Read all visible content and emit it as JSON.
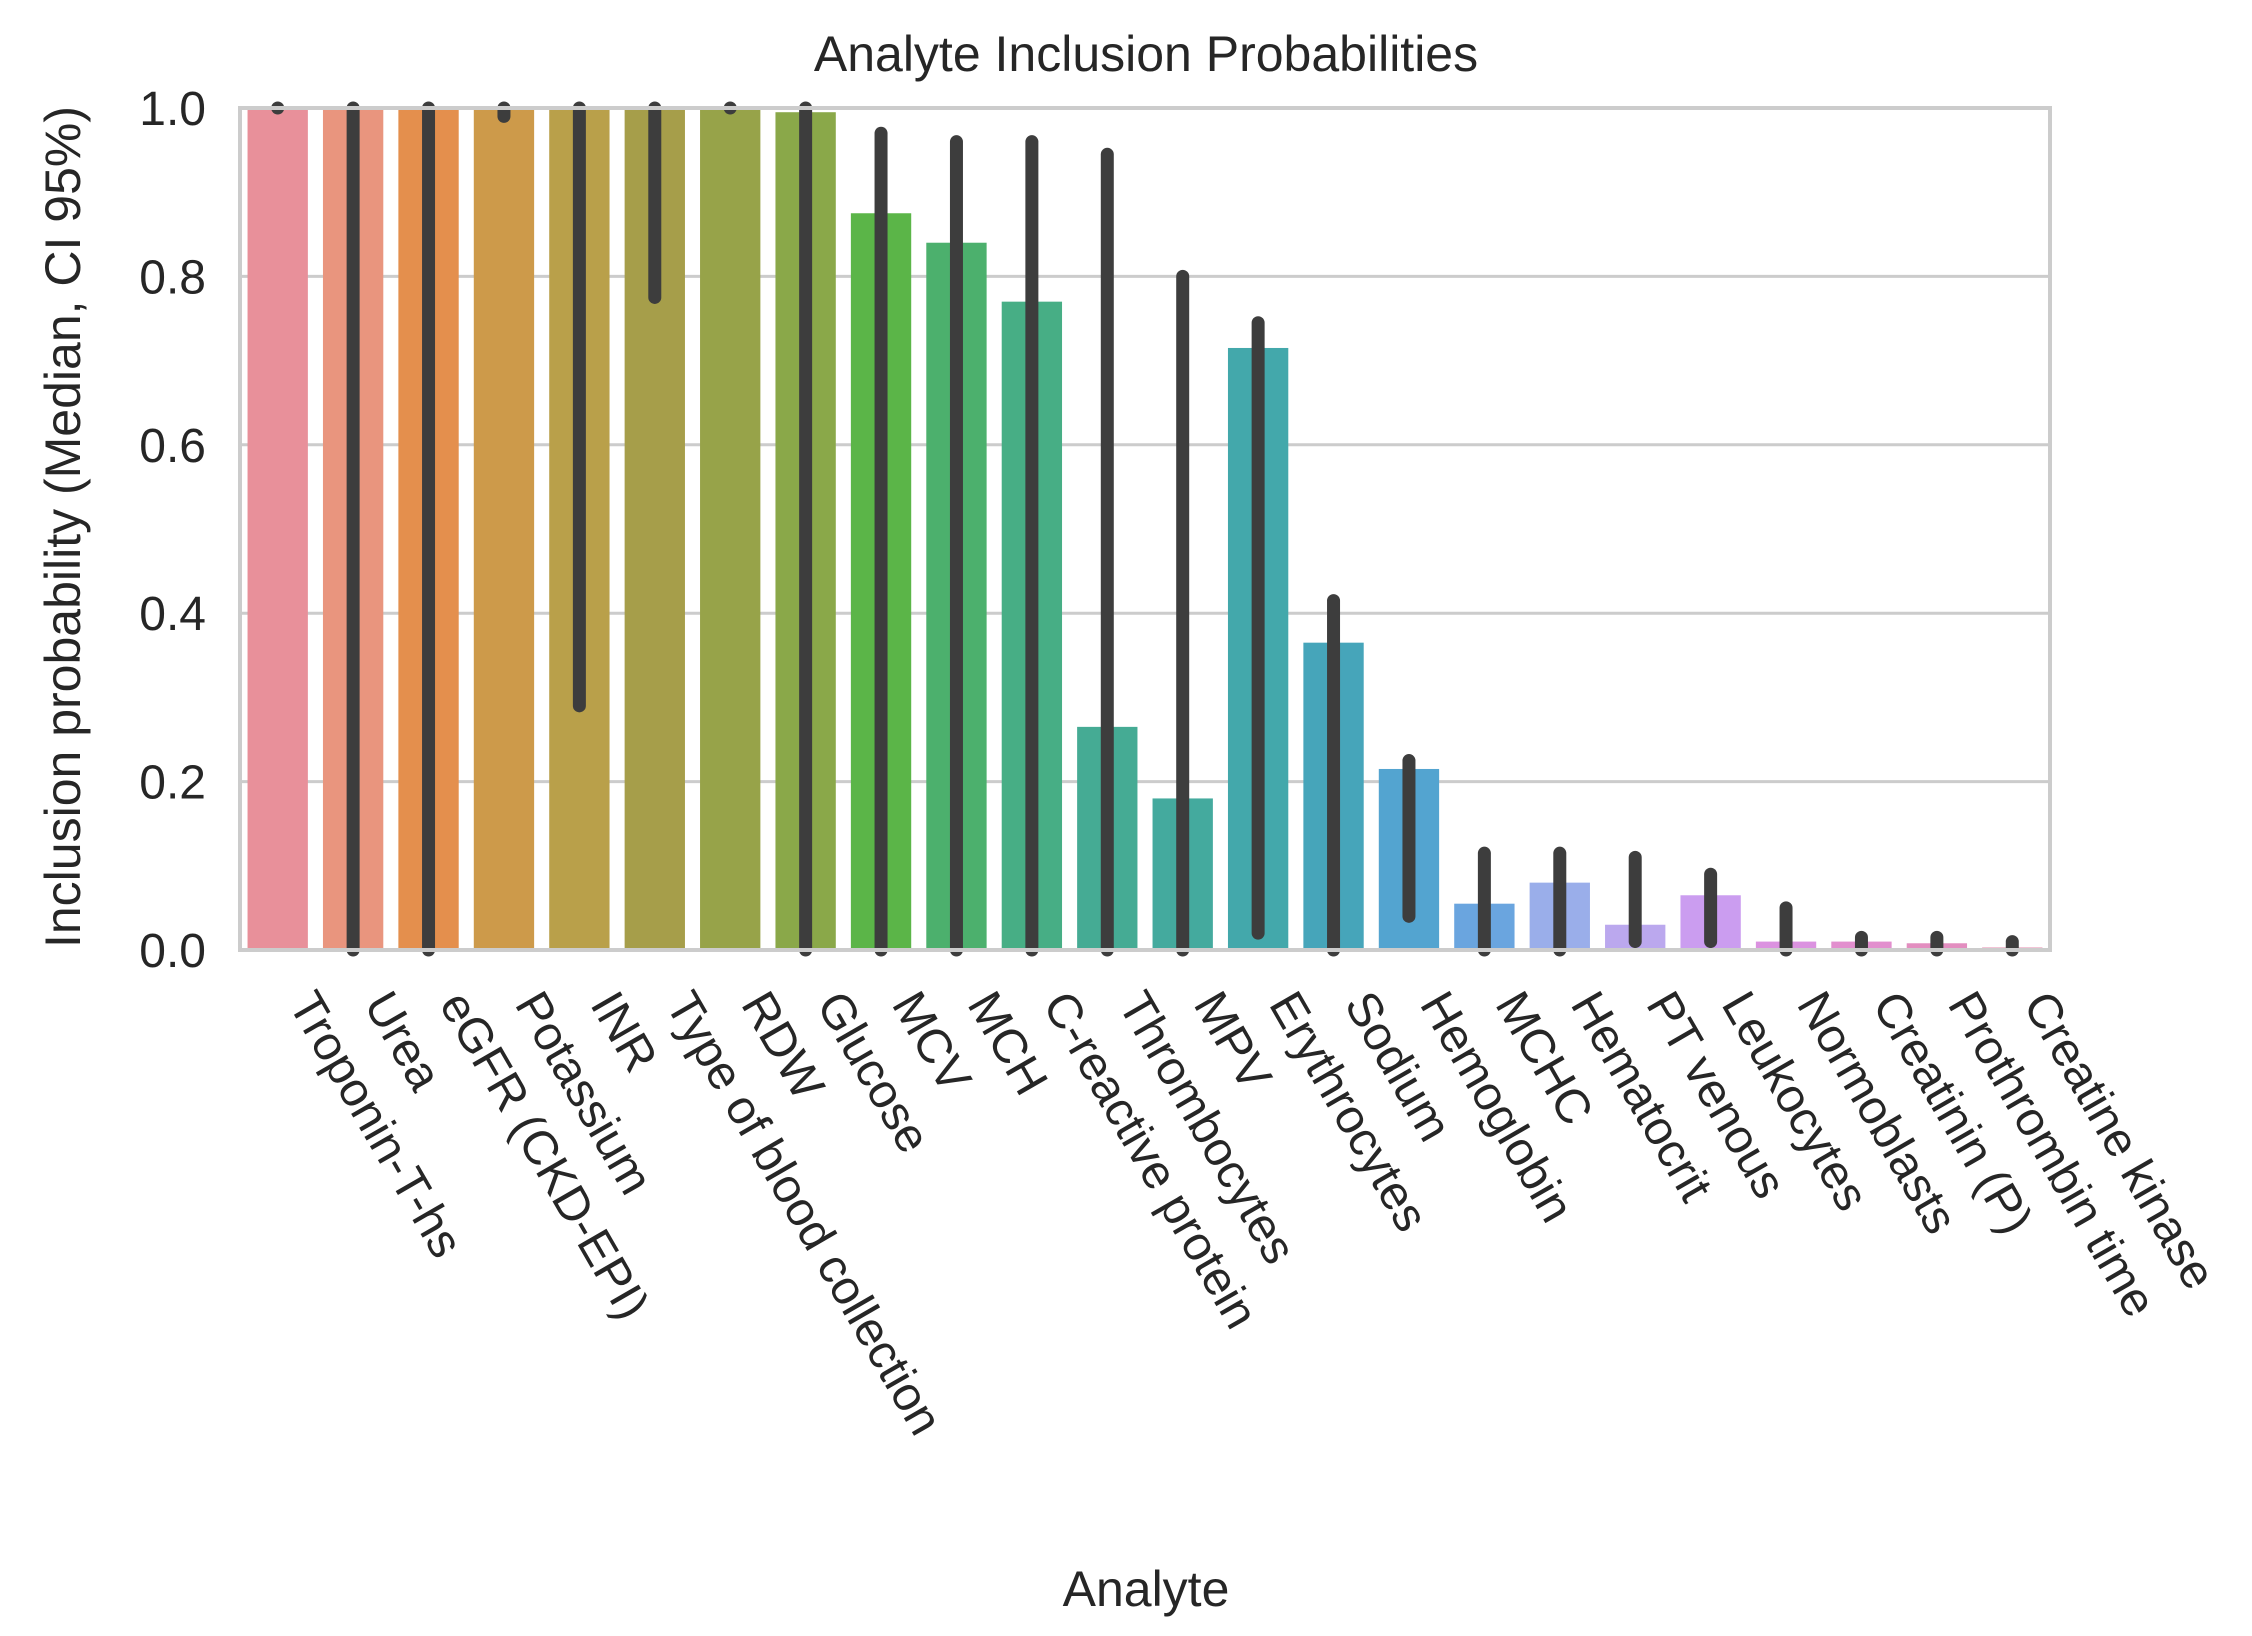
{
  "chart_data": {
    "type": "bar",
    "title": "Analyte Inclusion Probabilities",
    "xlabel": "Analyte",
    "ylabel": "Inclusion probability (Median, CI 95%)",
    "ylim": [
      0,
      1.0
    ],
    "yticks": [
      "0.0",
      "0.2",
      "0.4",
      "0.6",
      "0.8",
      "1.0"
    ],
    "grid": true,
    "error_bars": "CI 95%",
    "categories": [
      "Troponin-T-hs",
      "Urea",
      "eGFR (CKD-EPI)",
      "Potassium",
      "INR",
      "Type of blood collection",
      "RDW",
      "Glucose",
      "MCV",
      "MCH",
      "C-reactive protein",
      "Thrombocytes",
      "MPV",
      "Erythrocytes",
      "Sodium",
      "Hemoglobin",
      "MCHC",
      "Hematocrit",
      "PT venous",
      "Leukocytes",
      "Normoblasts",
      "Creatinin (P)",
      "Prothrombin time",
      "Creatine kinase"
    ],
    "values": [
      1.0,
      1.0,
      1.0,
      1.0,
      1.0,
      1.0,
      1.0,
      0.995,
      0.875,
      0.84,
      0.77,
      0.265,
      0.18,
      0.715,
      0.365,
      0.215,
      0.055,
      0.08,
      0.03,
      0.065,
      0.01,
      0.01,
      0.008,
      0.003
    ],
    "ci_low": [
      1.0,
      0.0,
      0.0,
      0.99,
      0.29,
      0.775,
      1.0,
      0.0,
      0.0,
      0.0,
      0.0,
      0.0,
      0.0,
      0.02,
      0.0,
      0.04,
      0.0,
      0.0,
      0.01,
      0.01,
      0.0,
      0.0,
      0.0,
      0.0
    ],
    "ci_high": [
      1.0,
      1.0,
      1.0,
      1.0,
      1.0,
      1.0,
      1.0,
      1.0,
      0.97,
      0.96,
      0.96,
      0.945,
      0.8,
      0.745,
      0.415,
      0.225,
      0.115,
      0.115,
      0.11,
      0.09,
      0.05,
      0.015,
      0.015,
      0.01
    ],
    "colors": [
      "#e8909a",
      "#e9957e",
      "#e48f4d",
      "#cd9a4a",
      "#b9a04a",
      "#a69e4a",
      "#97a349",
      "#8aa849",
      "#5bb548",
      "#4cb06d",
      "#47ae85",
      "#45ab94",
      "#44aa9e",
      "#43a8ab",
      "#46a5ba",
      "#53a4d0",
      "#6aa5df",
      "#9aaeea",
      "#bba8ee",
      "#cb9df0",
      "#db92e0",
      "#e28fce",
      "#e38ec0",
      "#e690b0"
    ]
  }
}
